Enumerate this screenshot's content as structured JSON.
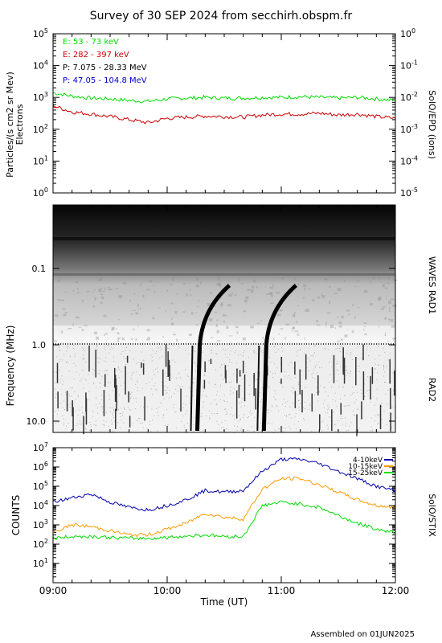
{
  "page": {
    "title": "Survey of 30 SEP 2024 from secchirh.obspm.fr",
    "footer": "Assembled on 01JUN2025",
    "xlabel": "Time (UT)",
    "x_ticks": [
      "09:00",
      "10:00",
      "11:00",
      "12:00"
    ]
  },
  "colors": {
    "electrons_low": "#00dd00",
    "electrons_high": "#cc0000",
    "protons_low": "#000000",
    "protons_high": "#0000cc",
    "stix_low": "#0000aa",
    "stix_mid": "#ff9900",
    "stix_high": "#00dd00"
  },
  "chart_data": [
    {
      "type": "line",
      "name": "particles",
      "ylabel_left": "Particles/(s cm2 sr Mev)",
      "ylabel_left2": "Electrons",
      "ylabel_right": "SolO/EPD (ions)",
      "y_scale": "log",
      "ylim_left": [
        1,
        100000
      ],
      "ylim_right": [
        1e-05,
        1
      ],
      "y_ticks_left": [
        "10^0",
        "10^1",
        "10^2",
        "10^3",
        "10^4",
        "10^5"
      ],
      "y_ticks_right": [
        "10^-5",
        "10^-4",
        "10^-3",
        "10^-2",
        "10^-1",
        "10^0"
      ],
      "x": [
        "09:00",
        "09:10",
        "09:20",
        "09:30",
        "09:40",
        "09:50",
        "10:00",
        "10:10",
        "10:20",
        "10:30",
        "10:40",
        "10:50",
        "11:00",
        "11:10",
        "11:20",
        "11:30",
        "11:40",
        "11:50",
        "12:00"
      ],
      "legend": [
        "E: 53 - 73 keV",
        "E: 282 - 397 keV",
        "P: 7.075 - 28.33 MeV",
        "P: 47.05 - 104.8 MeV"
      ],
      "series": [
        {
          "name": "E: 53 - 73 keV",
          "values": [
            1400,
            1100,
            950,
            900,
            800,
            750,
            900,
            950,
            1000,
            950,
            950,
            1000,
            1000,
            1050,
            1000,
            950,
            1000,
            900,
            800
          ]
        },
        {
          "name": "E: 282 - 397 keV",
          "values": [
            550,
            350,
            300,
            250,
            200,
            160,
            220,
            240,
            260,
            250,
            240,
            280,
            300,
            300,
            320,
            280,
            300,
            250,
            220
          ]
        }
      ]
    },
    {
      "type": "heatmap",
      "name": "radio",
      "ylabel": "Frequency (MHz)",
      "ylabel_right_top": "WAVES RAD1",
      "ylabel_right_bottom": "RAD2",
      "y_scale": "log",
      "y_ticks": [
        "0.1",
        "1.0",
        "10.0"
      ],
      "features": [
        {
          "name": "type III burst",
          "time": "10:15"
        },
        {
          "name": "type III burst",
          "time": "10:50"
        }
      ]
    },
    {
      "type": "line",
      "name": "stix",
      "ylabel": "COUNTS",
      "ylabel_right": "SolO/STIX",
      "y_scale": "log",
      "ylim": [
        1,
        10000000
      ],
      "y_ticks": [
        "10^1",
        "10^2",
        "10^3",
        "10^4",
        "10^5",
        "10^6",
        "10^7"
      ],
      "x": [
        "09:00",
        "09:10",
        "09:20",
        "09:30",
        "09:40",
        "09:50",
        "10:00",
        "10:10",
        "10:20",
        "10:30",
        "10:40",
        "10:50",
        "11:00",
        "11:10",
        "11:20",
        "11:30",
        "11:40",
        "11:50",
        "12:00"
      ],
      "legend": [
        "4-10keV",
        "10-15keV",
        "15-25keV"
      ],
      "series": [
        {
          "name": "4-10keV",
          "values": [
            15000,
            25000,
            40000,
            15000,
            8000,
            6000,
            10000,
            20000,
            60000,
            50000,
            60000,
            600000,
            2500000,
            2500000,
            1500000,
            600000,
            250000,
            100000,
            60000
          ]
        },
        {
          "name": "10-15keV",
          "values": [
            400,
            1000,
            800,
            500,
            300,
            300,
            600,
            1200,
            4000,
            2500,
            2000,
            70000,
            250000,
            250000,
            120000,
            50000,
            20000,
            10000,
            8000
          ]
        },
        {
          "name": "15-25keV",
          "values": [
            200,
            250,
            250,
            220,
            200,
            200,
            220,
            260,
            300,
            250,
            250,
            10000,
            15000,
            12000,
            8000,
            3000,
            1200,
            600,
            400
          ]
        }
      ]
    }
  ]
}
